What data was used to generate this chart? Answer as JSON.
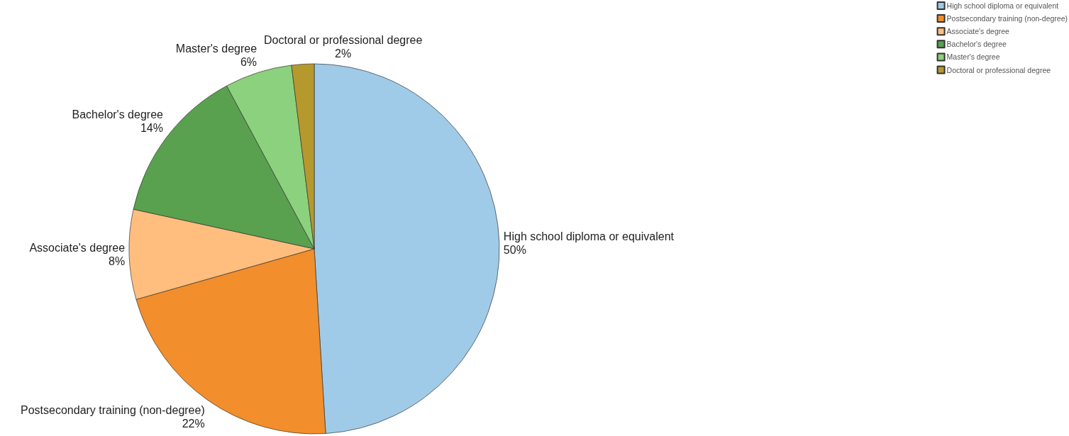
{
  "chart_data": {
    "type": "pie",
    "categories": [
      "High school diploma or equivalent",
      "Postsecondary training (non-degree)",
      "Associate's degree",
      "Bachelor's degree",
      "Master's degree",
      "Doctoral or professional degree"
    ],
    "values": [
      50,
      22,
      8,
      14,
      6,
      2
    ],
    "value_labels": [
      "50%",
      "22%",
      "8%",
      "14%",
      "6%",
      "2%"
    ],
    "colors": [
      "#a0cbe8",
      "#f28e2b",
      "#ffbe7d",
      "#59a14f",
      "#8cd17d",
      "#b6992d"
    ],
    "legend": "top right"
  }
}
